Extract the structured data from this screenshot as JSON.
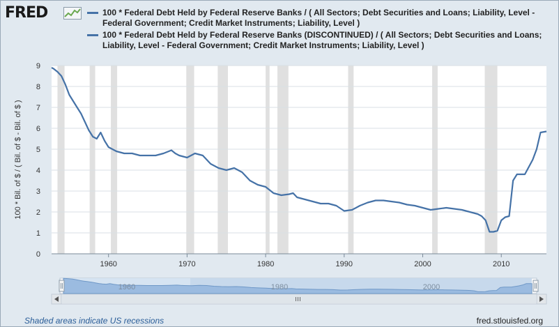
{
  "header": {
    "logo_text": "FRED",
    "logo_icon": "sparkline-chart-icon"
  },
  "legend": [
    {
      "label": "100 * Federal Debt Held by Federal Reserve Banks / ( All Sectors; Debt Securities and Loans; Liability, Level - Federal Government; Credit Market Instruments; Liability, Level )",
      "color": "#4572a7"
    },
    {
      "label": "100 * Federal Debt Held by Federal Reserve Banks (DISCONTINUED) / ( All Sectors; Debt Securities and Loans; Liability, Level - Federal Government; Credit Market Instruments; Liability, Level )",
      "color": "#4572a7"
    }
  ],
  "chart_data": {
    "type": "line",
    "ylabel": "100 * Bil. of $ / ( Bil. of $ - Bil. of $ )",
    "xlabel": "",
    "ylim": [
      0,
      9
    ],
    "xlim": [
      1952.75,
      2015.75
    ],
    "yticks": [
      "0",
      "1",
      "2",
      "3",
      "4",
      "5",
      "6",
      "7",
      "8",
      "9"
    ],
    "xticks": [
      "1960",
      "1970",
      "1980",
      "1990",
      "2000",
      "2010"
    ],
    "grid": true,
    "recessions": [
      [
        1953.5,
        1954.4
      ],
      [
        1957.6,
        1958.3
      ],
      [
        1960.3,
        1961.1
      ],
      [
        1969.9,
        1970.9
      ],
      [
        1973.9,
        1975.2
      ],
      [
        1980.0,
        1980.5
      ],
      [
        1981.5,
        1982.9
      ],
      [
        1990.5,
        1991.2
      ],
      [
        2001.2,
        2001.9
      ],
      [
        2007.9,
        2009.5
      ]
    ],
    "series": [
      {
        "x": [
          1952.75,
          1953.0,
          1953.5,
          1954.0,
          1954.5,
          1955.0,
          1955.5,
          1956.0,
          1956.5,
          1957.0,
          1957.5,
          1958.0,
          1958.5,
          1959.0,
          1959.5,
          1960.0,
          1961.0,
          1962.0,
          1963.0,
          1964.0,
          1965.0,
          1966.0,
          1967.0,
          1968.0,
          1968.5,
          1969.0,
          1970.0,
          1971.0,
          1972.0,
          1973.0,
          1974.0,
          1975.0,
          1976.0,
          1977.0,
          1978.0,
          1979.0,
          1980.0,
          1981.0,
          1982.0,
          1983.0,
          1983.5,
          1984.0,
          1985.0,
          1986.0,
          1987.0,
          1988.0,
          1989.0,
          1990.0,
          1991.0,
          1992.0,
          1993.0,
          1994.0,
          1995.0,
          1996.0,
          1997.0,
          1998.0,
          1999.0,
          2000.0,
          2001.0,
          2002.0,
          2003.0,
          2004.0,
          2005.0,
          2006.0,
          2007.0,
          2007.5,
          2008.0,
          2008.5,
          2009.0,
          2009.5,
          2010.0,
          2010.5,
          2011.0,
          2011.5,
          2012.0,
          2013.0,
          2014.0,
          2014.5,
          2015.0,
          2015.75
        ],
        "y": [
          8.9,
          8.85,
          8.7,
          8.5,
          8.1,
          7.6,
          7.3,
          7.0,
          6.7,
          6.3,
          5.9,
          5.6,
          5.5,
          5.8,
          5.4,
          5.1,
          4.9,
          4.8,
          4.8,
          4.7,
          4.7,
          4.7,
          4.8,
          4.95,
          4.8,
          4.7,
          4.6,
          4.8,
          4.7,
          4.3,
          4.1,
          4.0,
          4.1,
          3.9,
          3.5,
          3.3,
          3.2,
          2.9,
          2.8,
          2.85,
          2.9,
          2.7,
          2.6,
          2.5,
          2.4,
          2.4,
          2.3,
          2.05,
          2.1,
          2.3,
          2.45,
          2.55,
          2.55,
          2.5,
          2.45,
          2.35,
          2.3,
          2.2,
          2.1,
          2.15,
          2.2,
          2.15,
          2.1,
          2.0,
          1.9,
          1.8,
          1.6,
          1.05,
          1.05,
          1.1,
          1.6,
          1.75,
          1.8,
          3.5,
          3.8,
          3.8,
          4.5,
          5.0,
          5.8,
          5.85
        ]
      }
    ]
  },
  "navigator": {
    "labels": [
      "1960",
      "1980",
      "2000"
    ]
  },
  "footer": {
    "footnote": "Shaded areas indicate US recessions",
    "source": "fred.stlouisfed.org"
  }
}
